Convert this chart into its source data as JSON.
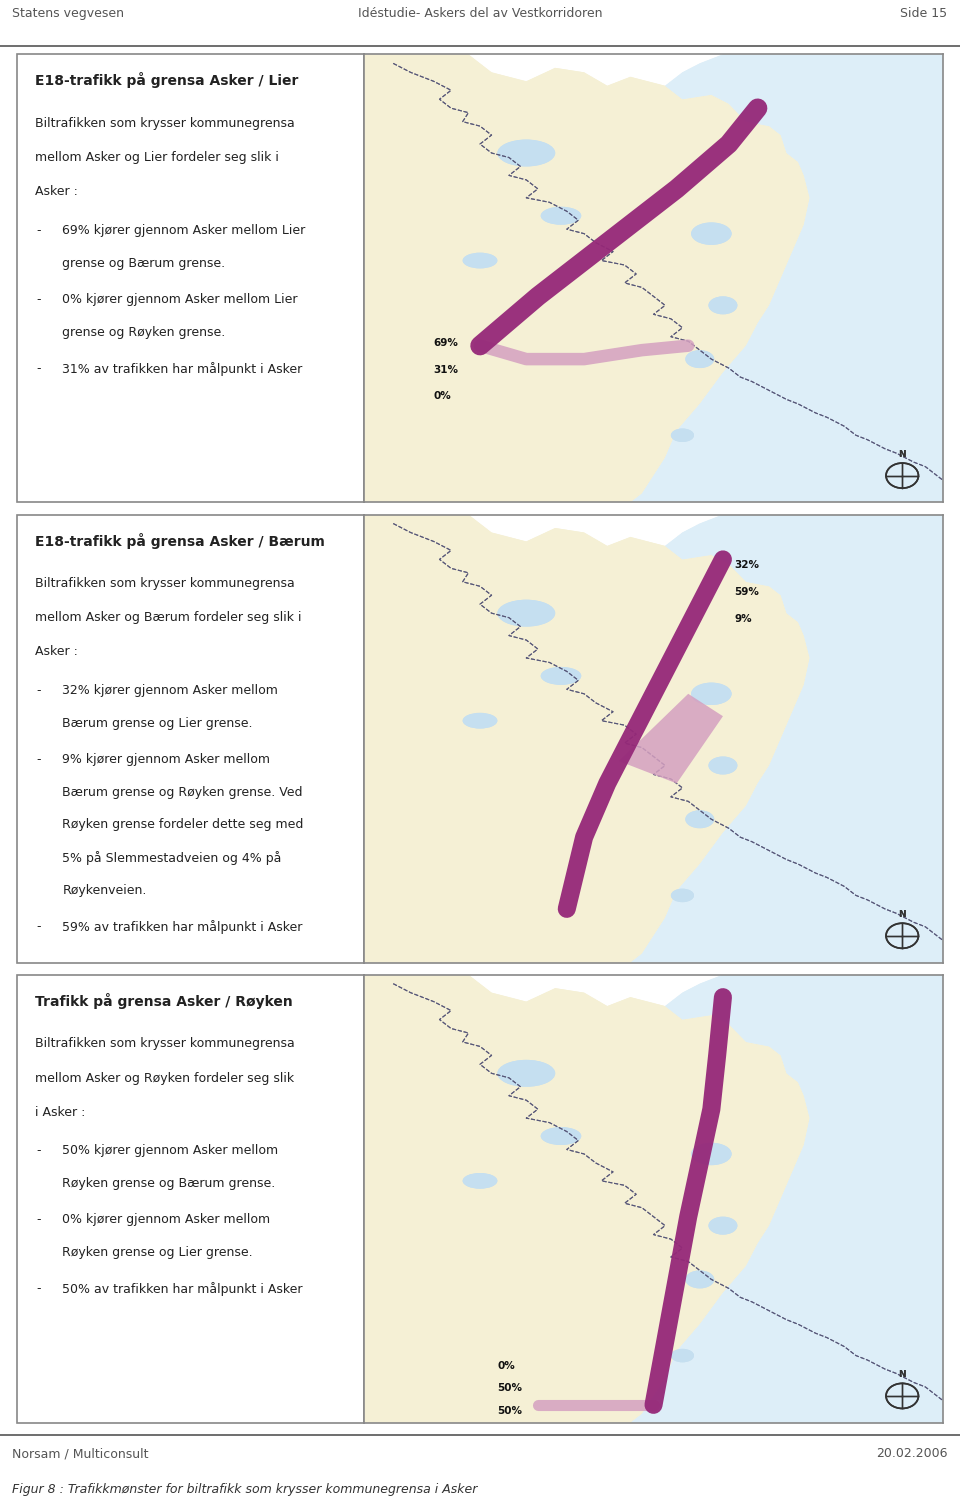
{
  "header_left": "Statens vegvesen",
  "header_center": "Idéstudie- Askers del av Vestkorridoren",
  "header_right": "Side 15",
  "footer_left": "Norsam / Multiconsult",
  "footer_right": "20.02.2006",
  "figure_caption": "Figur 8 : Trafikkmønster for biltrafikk som krysser kommunegrensa i Asker",
  "panel1": {
    "title": "E18-trafikk på grensa Asker / Lier",
    "body": "Biltrafikken som krysser kommunegrensa\nmellom Asker og Lier fordeler seg slik i\nAsker :",
    "bullets": [
      "69% kjører gjennom Asker mellom Lier\ngrense og Bærum grense.",
      "0% kjører gjennom Asker mellom Lier\ngrense og Røyken grense.",
      "31% av trafikken har målpunkt i Asker"
    ]
  },
  "panel2": {
    "title": "E18-trafikk på grensa Asker / Bærum",
    "body": "Biltrafikken som krysser kommunegrensa\nmellom Asker og Bærum fordeler seg slik i\nAsker :",
    "bullets": [
      "32% kjører gjennom Asker mellom\nBærum grense og Lier grense.",
      "9% kjører gjennom Asker mellom\nBærum grense og Røyken grense. Ved\nRøyken grense fordeler dette seg med\n5% på Slemmestadveien og 4% på\nRøykenveien.",
      "59% av trafikken har målpunkt i Asker"
    ]
  },
  "panel3": {
    "title": "Trafikk på grensa Asker / Røyken",
    "body": "Biltrafikken som krysser kommunegrensa\nmellom Asker og Røyken fordeler seg slik\ni Asker :",
    "bullets": [
      "50% kjører gjennom Asker mellom\nRøyken grense og Bærum grense.",
      "0% kjører gjennom Asker mellom\nRøyken grense og Lier grense.",
      "50% av trafikken har målpunkt i Asker"
    ]
  },
  "bg_color": "#ffffff",
  "panel_bg": "#ffffff",
  "border_color": "#888888",
  "header_line_color": "#555555",
  "map_bg_land": "#f5f0d5",
  "map_bg_water_fjord": "#ddeef8",
  "map_bg_water_inland": "#c5dff0",
  "road_color_dark": "#952878",
  "road_color_light": "#d4a0c0",
  "text_color": "#222222"
}
